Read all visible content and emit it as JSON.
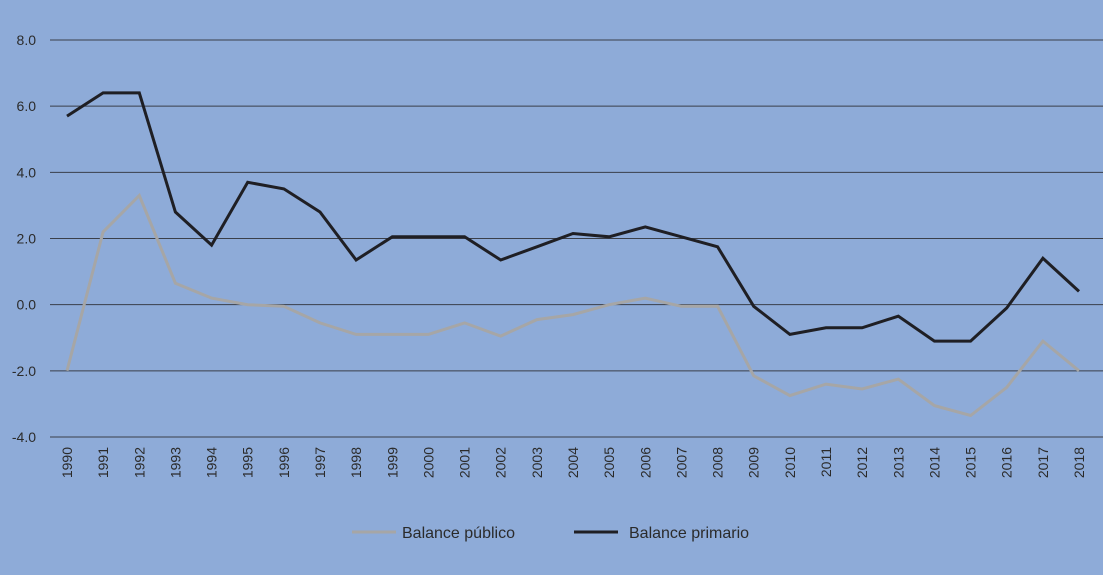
{
  "colors": {
    "background": "#8eabd8",
    "gridline": "#3a3f4a",
    "series_publico": "#a6a6a6",
    "series_primario": "#1f1f24"
  },
  "chart_data": {
    "type": "line",
    "title": "",
    "xlabel": "",
    "ylabel": "",
    "ylim": [
      -4.0,
      8.0
    ],
    "yticks": [
      "8.0",
      "6.0",
      "4.0",
      "2.0",
      "0.0",
      "-2.0",
      "-4.0"
    ],
    "ytick_values": [
      8,
      6,
      4,
      2,
      0,
      -2,
      -4
    ],
    "grid": true,
    "legend_position": "bottom-center",
    "x": [
      "1990",
      "1991",
      "1992",
      "1993",
      "1994",
      "1995",
      "1996",
      "1997",
      "1998",
      "1999",
      "2000",
      "2001",
      "2002",
      "2003",
      "2004",
      "2005",
      "2006",
      "2007",
      "2008",
      "2009",
      "2010",
      "2011",
      "2012",
      "2013",
      "2014",
      "2015",
      "2016",
      "2017",
      "2018"
    ],
    "series": [
      {
        "name": "Balance público",
        "color": "#a6a6a6",
        "values": [
          -2.0,
          2.2,
          3.3,
          0.65,
          0.2,
          0.0,
          -0.05,
          -0.55,
          -0.9,
          -0.9,
          -0.9,
          -0.55,
          -0.95,
          -0.45,
          -0.3,
          0.0,
          0.2,
          -0.05,
          -0.05,
          -2.15,
          -2.75,
          -2.4,
          -2.55,
          -2.25,
          -3.05,
          -3.35,
          -2.5,
          -1.1,
          -2.0
        ]
      },
      {
        "name": "Balance primario",
        "color": "#1f1f24",
        "values": [
          5.7,
          6.4,
          6.4,
          2.8,
          1.8,
          3.7,
          3.5,
          2.8,
          1.35,
          2.05,
          2.05,
          2.05,
          1.35,
          1.75,
          2.15,
          2.05,
          2.35,
          2.05,
          1.75,
          -0.05,
          -0.9,
          -0.7,
          -0.7,
          -0.35,
          -1.1,
          -1.1,
          -0.1,
          1.4,
          0.4
        ]
      }
    ]
  }
}
